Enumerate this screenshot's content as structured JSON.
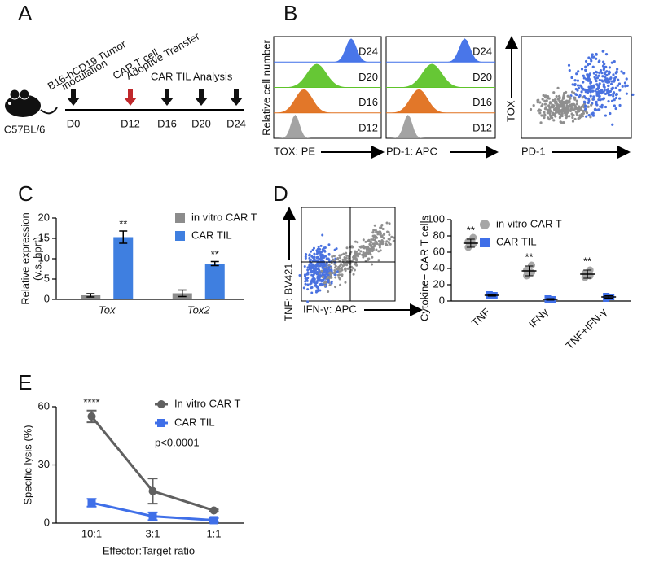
{
  "panel_a": {
    "label": "A",
    "strain": "C57BL/6",
    "events": [
      [
        "B16-hCD19 Tumor",
        "inoculation"
      ],
      [
        "CAR T cell",
        "Adoptive Transfer"
      ],
      [
        "CAR TIL Analysis"
      ]
    ],
    "days": [
      "D0",
      "D12",
      "D16",
      "D20",
      "D24"
    ]
  },
  "panel_b": {
    "label": "B",
    "y_label": "Relative cell number",
    "histograms": [
      {
        "x_label": "TOX: PE"
      },
      {
        "x_label": "PD-1: APC"
      }
    ],
    "days": [
      "D24",
      "D20",
      "D16",
      "D12"
    ],
    "scatter": {
      "x_label": "PD-1",
      "y_label": "TOX"
    }
  },
  "panel_d_flow": {
    "label": "D",
    "x_label": "IFN-γ: APC",
    "y_label": "TNF: BV421"
  },
  "chart_data": [
    {
      "type": "bar",
      "panel": "C",
      "y_label": [
        "Relative expression",
        "(v.s. hprt)"
      ],
      "categories": [
        "Tox",
        "Tox2"
      ],
      "ylim": [
        0,
        20
      ],
      "yticks": [
        0,
        5,
        10,
        15,
        20
      ],
      "series": [
        {
          "name": "in vitro CAR T",
          "color": "#8c8c8c",
          "values": [
            1,
            1.5
          ],
          "errors": [
            0.4,
            0.8
          ]
        },
        {
          "name": "CAR TIL",
          "color": "#3f7fe0",
          "values": [
            15.3,
            8.8
          ],
          "errors": [
            1.5,
            0.5
          ],
          "annotations": [
            "**",
            "**"
          ]
        }
      ]
    },
    {
      "type": "dot",
      "y_label": "Cytokine+ CAR T  cells",
      "categories": [
        "TNF",
        "IFNγ",
        "TNF+IFN-γ"
      ],
      "ylim": [
        0,
        100
      ],
      "yticks": [
        0,
        20,
        40,
        60,
        80,
        100
      ],
      "series": [
        {
          "name": "in vitro CAR T",
          "color": "#a6a6a6",
          "marker": "circle",
          "values": [
            71,
            37,
            33
          ],
          "errors": [
            5,
            6,
            5
          ],
          "points": [
            [
              66,
              70,
              73,
              78
            ],
            [
              31,
              35,
              38,
              44
            ],
            [
              29,
              31,
              34,
              38
            ]
          ],
          "annotations": [
            "**",
            "**",
            "**"
          ]
        },
        {
          "name": "CAR TIL",
          "color": "#3f6fe8",
          "marker": "square",
          "values": [
            7,
            2,
            5
          ],
          "errors": [
            1,
            1,
            1.5
          ],
          "points": [
            [
              6,
              7,
              8
            ],
            [
              1,
              2,
              3
            ],
            [
              3,
              5,
              6
            ]
          ]
        }
      ]
    },
    {
      "type": "line",
      "panel": "E",
      "x_label": "Effector:Target ratio",
      "y_label": "Specific lysis (%)",
      "annotation": "p<0.0001",
      "categories": [
        "10:1",
        "3:1",
        "1:1"
      ],
      "ylim": [
        0,
        60
      ],
      "yticks": [
        0,
        30,
        60
      ],
      "series": [
        {
          "name": "In vitro CAR T",
          "color": "#606060",
          "marker": "circle",
          "values": [
            55,
            16.5,
            6.5
          ],
          "errors": [
            3,
            6.5,
            0.5
          ],
          "annotations": [
            "****",
            null,
            null
          ]
        },
        {
          "name": "CAR TIL",
          "color": "#3f6fe8",
          "marker": "square",
          "values": [
            10.5,
            3.5,
            1.5
          ],
          "errors": [
            2,
            2,
            1
          ]
        }
      ]
    }
  ]
}
